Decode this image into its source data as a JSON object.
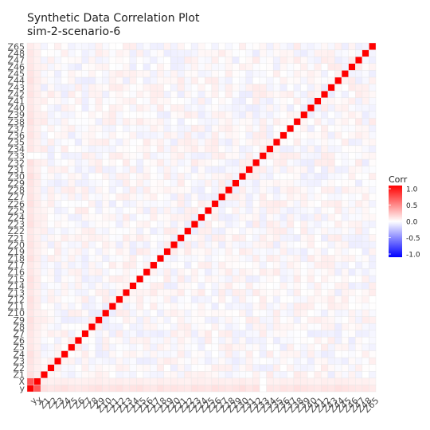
{
  "chart_data": {
    "type": "heatmap",
    "title": "Synthetic Data Correlation Plot",
    "subtitle": "sim-2-scenario-6",
    "xlabel": "",
    "ylabel": "",
    "variables": [
      "y",
      "X",
      "Z1",
      "Z2",
      "Z3",
      "Z4",
      "Z5",
      "Z6",
      "Z7",
      "Z8",
      "Z9",
      "Z10",
      "Z11",
      "Z12",
      "Z13",
      "Z14",
      "Z15",
      "Z16",
      "Z17",
      "Z18",
      "Z19",
      "Z20",
      "Z21",
      "Z22",
      "Z23",
      "Z24",
      "Z25",
      "Z26",
      "Z27",
      "Z28",
      "Z29",
      "Z30",
      "Z31",
      "Z32",
      "Z33",
      "Z34",
      "Z35",
      "Z36",
      "Z37",
      "Z38",
      "Z39",
      "Z40",
      "Z41",
      "Z42",
      "Z43",
      "Z44",
      "Z45",
      "Z46",
      "Z47",
      "Z48",
      "Z65"
    ],
    "diagonal_value": 1.0,
    "x_y_correlation": 0.65,
    "outcome_row_correlations": [
      0.65,
      1.0,
      0.12,
      0.1,
      0.11,
      0.12,
      0.1,
      0.09,
      0.1,
      0.11,
      0.12,
      0.1,
      0.11,
      0.12,
      0.1,
      0.11,
      0.12,
      0.1,
      0.09,
      0.12,
      0.1,
      0.11,
      0.1,
      0.09,
      0.12,
      0.11,
      0.1,
      0.12,
      0.11,
      0.1,
      0.11,
      0.13,
      0.1,
      0.12,
      0.0,
      0.1,
      0.09,
      0.11,
      0.1,
      0.12,
      0.11,
      0.1,
      0.09,
      0.11,
      0.1,
      0.12,
      0.11,
      0.1,
      0.09,
      0.1,
      0.08
    ],
    "typical_offdiagonal_range": [
      -0.1,
      0.1
    ],
    "legend": {
      "title": "Corr",
      "ticks": [
        "1.0",
        "0.5",
        "0.0",
        "-0.5",
        "-1.0"
      ],
      "low_color": "#0000ff",
      "mid_color": "#ffffff",
      "high_color": "#ff0000",
      "position": "right"
    },
    "grid": true
  }
}
